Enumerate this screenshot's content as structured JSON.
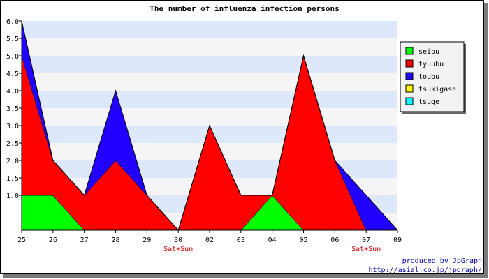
{
  "chart_data": {
    "type": "area",
    "stacked": true,
    "title": "The number of influenza infection persons",
    "xlabel": "",
    "ylabel": "",
    "categories": [
      "25",
      "26",
      "27",
      "28",
      "29",
      "30",
      "02",
      "03",
      "04",
      "05",
      "06",
      "07",
      "09"
    ],
    "weekend_labels": [
      {
        "category": "30",
        "text": "Sat+Sun"
      },
      {
        "category": "07",
        "text": "Sat+Sun"
      }
    ],
    "ylim": [
      0,
      6
    ],
    "yticks": [
      "1.0",
      "1.5",
      "2.0",
      "2.5",
      "3.0",
      "3.5",
      "4.0",
      "4.5",
      "5.0",
      "5.5",
      "6.0"
    ],
    "ytick_values": [
      1.0,
      1.5,
      2.0,
      2.5,
      3.0,
      3.5,
      4.0,
      4.5,
      5.0,
      5.5,
      6.0
    ],
    "grid": true,
    "grid_band_colors": [
      "#f5f5f5",
      "#dde8fb"
    ],
    "legend_position": "right",
    "series": [
      {
        "name": "seibu",
        "color": "#00ff00",
        "values": [
          1,
          1,
          0,
          0,
          0,
          0,
          0,
          0,
          1,
          0,
          0,
          0,
          0
        ]
      },
      {
        "name": "tyuubu",
        "color": "#ff0000",
        "values": [
          4,
          1,
          1,
          2,
          1,
          0,
          3,
          1,
          0,
          5,
          2,
          0,
          0
        ]
      },
      {
        "name": "toubu",
        "color": "#2200ff",
        "values": [
          1,
          0,
          0,
          2,
          0,
          0,
          0,
          0,
          0,
          0,
          0,
          1,
          0
        ]
      },
      {
        "name": "tsukigase",
        "color": "#ffff00",
        "values": [
          0,
          0,
          0,
          0,
          0,
          0,
          0,
          0,
          0,
          0,
          0,
          0,
          0
        ]
      },
      {
        "name": "tsuge",
        "color": "#00ffff",
        "values": [
          0,
          0,
          0,
          0,
          0,
          0,
          0,
          0,
          0,
          0,
          0,
          0,
          0
        ]
      }
    ]
  },
  "credits": {
    "line1": "produced by JpGraph",
    "line2": "http://asial.co.jp/jpgraph/"
  }
}
